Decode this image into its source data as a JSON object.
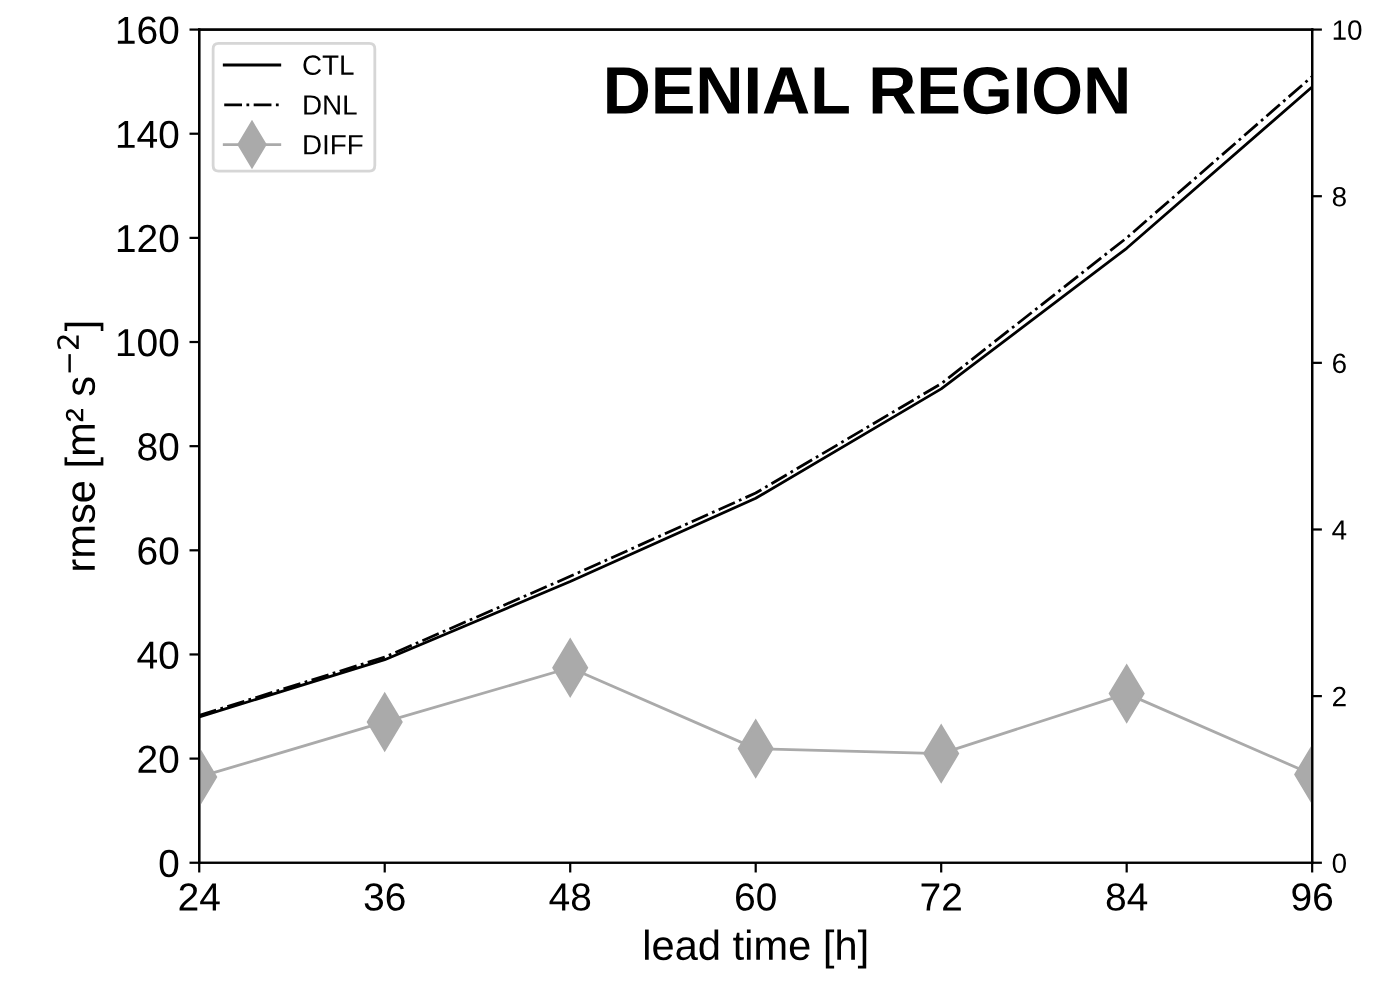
{
  "chart_data": {
    "type": "line",
    "title": "DENIAL REGION",
    "xlabel": "lead time [h]",
    "ylabel": "rmse [m² s$^{−2}$]",
    "x": [
      24,
      36,
      48,
      60,
      72,
      84,
      96
    ],
    "series": [
      {
        "name": "CTL",
        "color": "#000000",
        "line_style": "solid",
        "marker": "none",
        "values": [
          28,
          39,
          54,
          70,
          91,
          118,
          149
        ]
      },
      {
        "name": "DNL",
        "color": "#000000",
        "line_style": "dashdot",
        "marker": "none",
        "values": [
          28.3,
          39.5,
          55,
          71,
          92,
          120,
          151
        ]
      },
      {
        "name": "DIFF",
        "color": "#aaaaaa",
        "line_style": "solid",
        "marker": "diamond",
        "axis": "y2",
        "values": [
          1.03,
          1.69,
          2.34,
          1.37,
          1.31,
          2.03,
          1.06
        ]
      }
    ],
    "xlim": [
      24,
      96
    ],
    "xticks": [
      24,
      36,
      48,
      60,
      72,
      84,
      96
    ],
    "ylim": [
      0,
      160
    ],
    "yticks": [
      0,
      20,
      40,
      60,
      80,
      100,
      120,
      140,
      160
    ],
    "y2lim": [
      0,
      10
    ],
    "y2ticks": [
      0,
      2,
      4,
      6,
      8,
      10
    ],
    "grid": false,
    "legend": "top left"
  }
}
